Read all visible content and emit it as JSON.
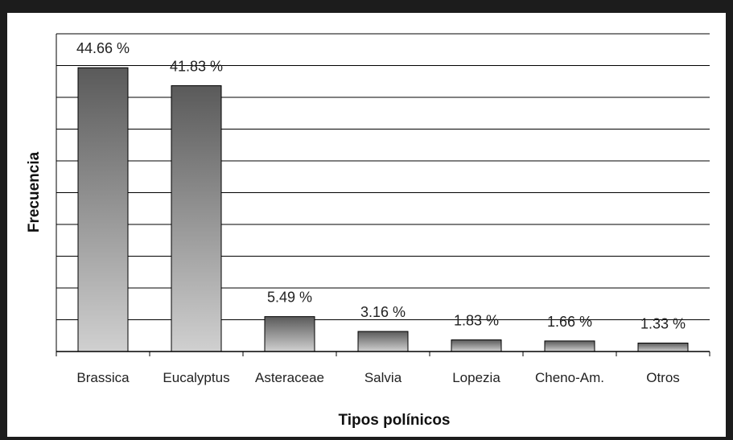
{
  "chart_data": {
    "type": "bar",
    "title": "",
    "xlabel": "Tipos polínicos",
    "ylabel": "Frecuencia",
    "categories": [
      "Brassica",
      "Eucalyptus",
      "Asteraceae",
      "Salvia",
      "Lopezia",
      "Cheno-Am.",
      "Otros"
    ],
    "values": [
      44.66,
      41.83,
      5.49,
      3.16,
      1.83,
      1.66,
      1.33
    ],
    "data_labels": [
      "44.66 %",
      "41.83 %",
      "5.49 %",
      "3.16 %",
      "1.83 %",
      "1.66 %",
      "1.33 %"
    ],
    "ylim": [
      0,
      50
    ],
    "grid": true,
    "legend": "none",
    "colors": {
      "bar_top": "#5a5a5a",
      "bar_bottom": "#d0d0d0",
      "grid": "#000000",
      "frame": "#1c1c1c"
    }
  }
}
